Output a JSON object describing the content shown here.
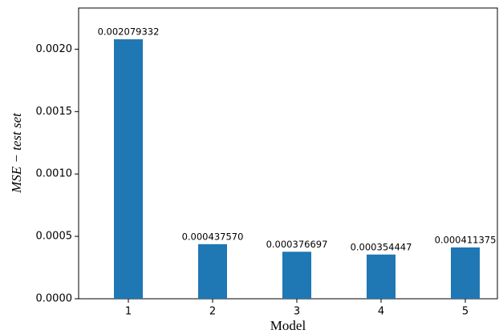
{
  "chart_data": {
    "type": "bar",
    "x_label": "Model",
    "y_label": "MSE − test set",
    "categories": [
      "1",
      "2",
      "3",
      "4",
      "5"
    ],
    "values": [
      0.002079332,
      0.00043757,
      0.000376697,
      0.000354447,
      0.000411375
    ],
    "value_labels": [
      "0.002079332",
      "0.000437570",
      "0.000376697",
      "0.000354447",
      "0.000411375"
    ],
    "color": "#1f77b4",
    "ylim": [
      0,
      0.00233
    ],
    "yticks": [
      {
        "value": 0,
        "label": "0.0000"
      },
      {
        "value": 0.0005,
        "label": "0.0005"
      },
      {
        "value": 0.001,
        "label": "0.0010"
      },
      {
        "value": 0.0015,
        "label": "0.0015"
      },
      {
        "value": 0.002,
        "label": "0.0020"
      }
    ],
    "grid": false
  }
}
